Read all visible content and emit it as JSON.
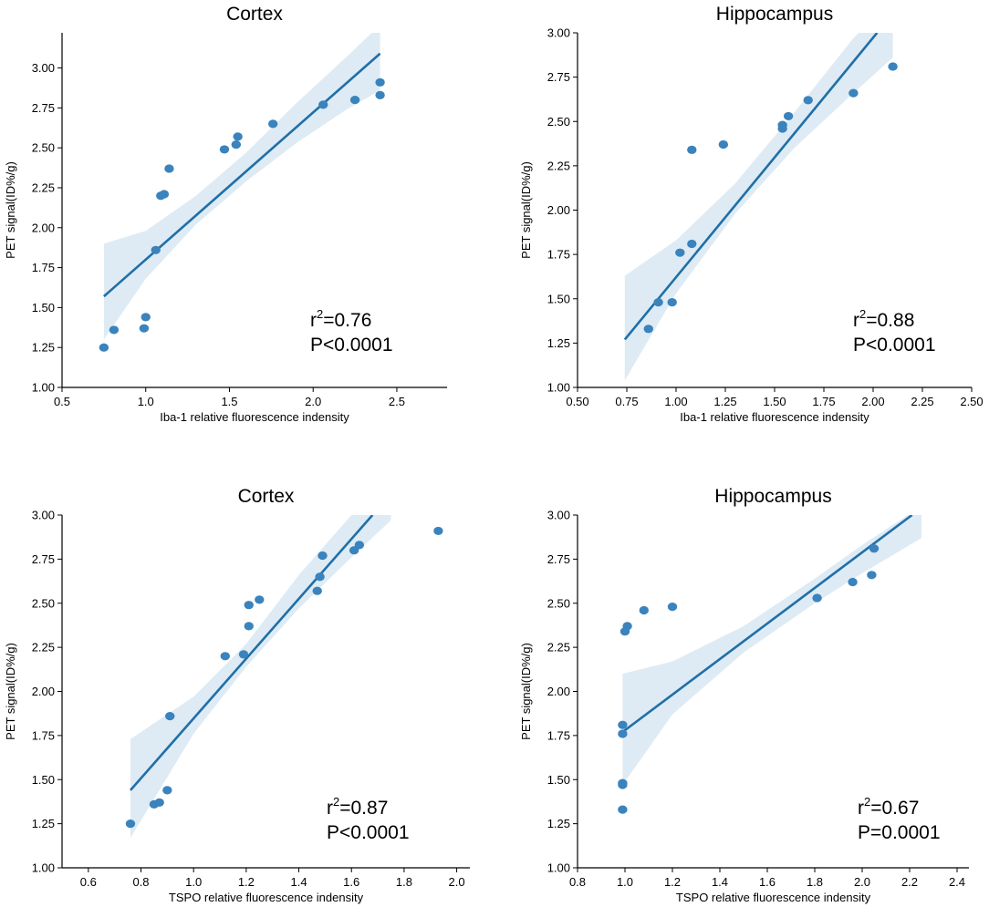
{
  "chart_data": [
    {
      "type": "scatter",
      "title": "Cortex",
      "xlabel": "Iba-1 relative fluorescence indensity",
      "ylabel": "PET signal(ID%/g)",
      "xlim": [
        0.5,
        2.8
      ],
      "ylim": [
        1.0,
        3.22
      ],
      "xticks": [
        "0.5",
        "1.0",
        "1.5",
        "2.0",
        "2.5"
      ],
      "yticks": [
        "1.00",
        "1.25",
        "1.50",
        "1.75",
        "2.00",
        "2.25",
        "2.50",
        "2.75",
        "3.00"
      ],
      "points": [
        [
          0.75,
          1.25
        ],
        [
          0.81,
          1.36
        ],
        [
          0.99,
          1.37
        ],
        [
          1.0,
          1.44
        ],
        [
          1.06,
          1.86
        ],
        [
          1.09,
          2.2
        ],
        [
          1.11,
          2.21
        ],
        [
          1.14,
          2.37
        ],
        [
          1.47,
          2.49
        ],
        [
          1.54,
          2.52
        ],
        [
          1.55,
          2.57
        ],
        [
          1.76,
          2.65
        ],
        [
          2.06,
          2.77
        ],
        [
          2.25,
          2.8
        ],
        [
          2.4,
          2.83
        ],
        [
          2.4,
          2.91
        ]
      ],
      "fit": {
        "x": [
          0.75,
          2.4
        ],
        "y": [
          1.57,
          3.09
        ]
      },
      "ci_band": {
        "x": [
          0.75,
          1.0,
          1.3,
          1.6,
          1.9,
          2.2,
          2.4
        ],
        "lower": [
          1.3,
          1.68,
          2.02,
          2.29,
          2.53,
          2.74,
          2.86
        ],
        "upper": [
          1.9,
          1.98,
          2.2,
          2.47,
          2.78,
          3.07,
          3.27
        ]
      },
      "annotation": {
        "r2_base": "r",
        "r2_sup": "2",
        "r2_value": "=0.76",
        "p": "P<0.0001"
      }
    },
    {
      "type": "scatter",
      "title": "Hippocampus",
      "xlabel": "Iba-1 relative fluorescence indensity",
      "ylabel": "PET signal(ID%/g)",
      "xlim": [
        0.5,
        2.5
      ],
      "ylim": [
        1.0,
        3.0
      ],
      "xticks": [
        "0.50",
        "0.75",
        "1.00",
        "1.25",
        "1.50",
        "1.75",
        "2.00",
        "2.25",
        "2.50"
      ],
      "yticks": [
        "1.00",
        "1.25",
        "1.50",
        "1.75",
        "2.00",
        "2.25",
        "2.50",
        "2.75",
        "3.00"
      ],
      "points": [
        [
          0.86,
          1.33
        ],
        [
          0.91,
          1.48
        ],
        [
          0.98,
          1.48
        ],
        [
          1.02,
          1.76
        ],
        [
          1.08,
          1.81
        ],
        [
          1.08,
          2.34
        ],
        [
          1.24,
          2.37
        ],
        [
          1.54,
          2.46
        ],
        [
          1.54,
          2.48
        ],
        [
          1.57,
          2.53
        ],
        [
          1.67,
          2.62
        ],
        [
          1.9,
          2.66
        ],
        [
          2.1,
          2.81
        ]
      ],
      "fit": {
        "x": [
          0.74,
          2.02
        ],
        "y": [
          1.27,
          3.0
        ]
      },
      "ci_band": {
        "x": [
          0.74,
          1.0,
          1.3,
          1.6,
          1.9,
          2.1
        ],
        "lower": [
          1.04,
          1.53,
          1.98,
          2.35,
          2.66,
          2.86
        ],
        "upper": [
          1.63,
          1.83,
          2.15,
          2.55,
          2.97,
          3.2
        ]
      },
      "annotation": {
        "r2_base": "r",
        "r2_sup": "2",
        "r2_value": "=0.88",
        "p": "P<0.0001"
      }
    },
    {
      "type": "scatter",
      "title": "Cortex",
      "xlabel": "TSPO relative fluorescence indensity",
      "ylabel": "PET signal(ID%/g)",
      "xlim": [
        0.5,
        2.05
      ],
      "ylim": [
        1.0,
        3.0
      ],
      "xticks": [
        "0.6",
        "0.8",
        "1.0",
        "1.2",
        "1.4",
        "1.6",
        "1.8",
        "2.0"
      ],
      "yticks": [
        "1.00",
        "1.25",
        "1.50",
        "1.75",
        "2.00",
        "2.25",
        "2.50",
        "2.75",
        "3.00"
      ],
      "points": [
        [
          0.76,
          1.25
        ],
        [
          0.85,
          1.36
        ],
        [
          0.87,
          1.37
        ],
        [
          0.9,
          1.44
        ],
        [
          0.91,
          1.86
        ],
        [
          1.12,
          2.2
        ],
        [
          1.19,
          2.21
        ],
        [
          1.21,
          2.37
        ],
        [
          1.21,
          2.49
        ],
        [
          1.25,
          2.52
        ],
        [
          1.47,
          2.57
        ],
        [
          1.48,
          2.65
        ],
        [
          1.49,
          2.77
        ],
        [
          1.61,
          2.8
        ],
        [
          1.63,
          2.83
        ],
        [
          1.93,
          2.91
        ]
      ],
      "fit": {
        "x": [
          0.76,
          1.68
        ],
        "y": [
          1.44,
          3.0
        ]
      },
      "ci_band": {
        "x": [
          0.76,
          1.0,
          1.2,
          1.4,
          1.6,
          1.75
        ],
        "lower": [
          1.17,
          1.76,
          2.14,
          2.47,
          2.76,
          2.97
        ],
        "upper": [
          1.73,
          1.97,
          2.27,
          2.66,
          3.0,
          3.2
        ]
      },
      "annotation": {
        "r2_base": "r",
        "r2_sup": "2",
        "r2_value": "=0.87",
        "p": "P<0.0001"
      }
    },
    {
      "type": "scatter",
      "title": "Hippocampus",
      "xlabel": "TSPO relative fluorescence indensity",
      "ylabel": "PET signal(ID%/g)",
      "xlim": [
        0.8,
        2.45
      ],
      "ylim": [
        1.0,
        3.0
      ],
      "xticks": [
        "0.8",
        "1.0",
        "1.2",
        "1.4",
        "1.6",
        "1.8",
        "2.0",
        "2.2",
        "2.4"
      ],
      "yticks": [
        "1.00",
        "1.25",
        "1.50",
        "1.75",
        "2.00",
        "2.25",
        "2.50",
        "2.75",
        "3.00"
      ],
      "points": [
        [
          0.99,
          1.33
        ],
        [
          0.99,
          1.47
        ],
        [
          0.99,
          1.48
        ],
        [
          0.99,
          1.76
        ],
        [
          0.99,
          1.81
        ],
        [
          1.0,
          2.34
        ],
        [
          1.01,
          2.37
        ],
        [
          1.08,
          2.46
        ],
        [
          1.2,
          2.48
        ],
        [
          1.81,
          2.53
        ],
        [
          1.96,
          2.62
        ],
        [
          2.04,
          2.66
        ],
        [
          2.05,
          2.81
        ]
      ],
      "fit": {
        "x": [
          0.99,
          2.21
        ],
        "y": [
          1.77,
          3.0
        ]
      },
      "ci_band": {
        "x": [
          0.99,
          1.2,
          1.5,
          1.8,
          2.0,
          2.25
        ],
        "lower": [
          1.47,
          1.87,
          2.22,
          2.5,
          2.67,
          2.87
        ],
        "upper": [
          2.1,
          2.17,
          2.37,
          2.64,
          2.83,
          3.05
        ]
      },
      "annotation": {
        "r2_base": "r",
        "r2_sup": "2",
        "r2_value": "=0.67",
        "p": "P=0.0001"
      }
    }
  ]
}
